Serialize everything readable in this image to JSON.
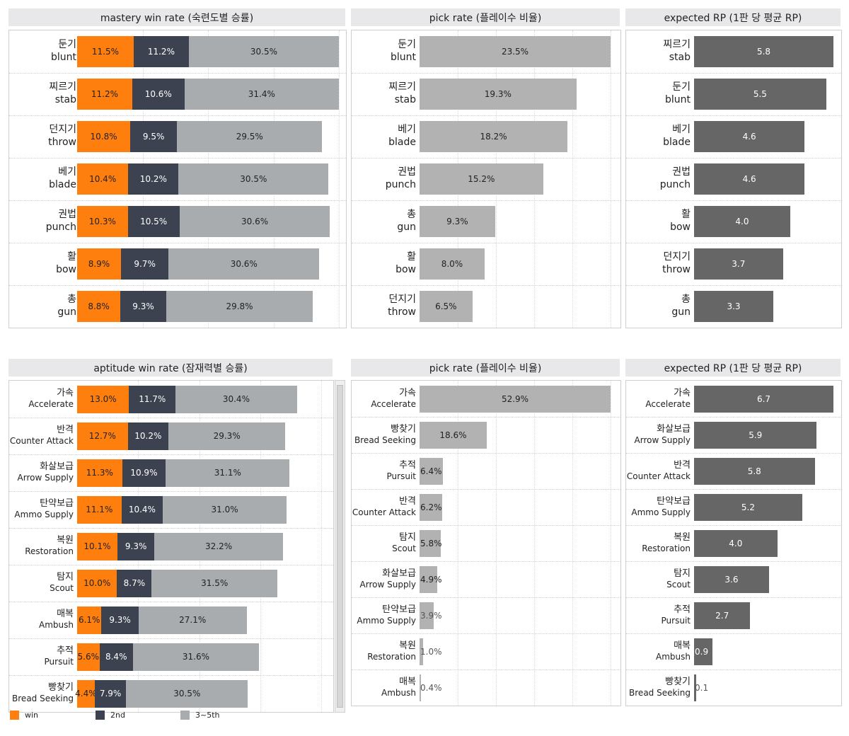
{
  "colors": {
    "win": "#ff7f0e",
    "second": "#3d4250",
    "third": "#a8acaf",
    "pick": "#b2b2b2",
    "rp": "#666666"
  },
  "legend": [
    {
      "label": "win",
      "color": "#ff7f0e"
    },
    {
      "label": "2nd",
      "color": "#3d4250"
    },
    {
      "label": "3~5th",
      "color": "#a8acaf"
    }
  ],
  "chart_data": [
    {
      "type": "bar",
      "stacked": true,
      "title": "mastery win rate (숙련도별 승률)",
      "categories": [
        {
          "ko": "둔기",
          "en": "blunt"
        },
        {
          "ko": "찌르기",
          "en": "stab"
        },
        {
          "ko": "던지기",
          "en": "throw"
        },
        {
          "ko": "베기",
          "en": "blade"
        },
        {
          "ko": "권법",
          "en": "punch"
        },
        {
          "ko": "활",
          "en": "bow"
        },
        {
          "ko": "총",
          "en": "gun"
        }
      ],
      "series": [
        {
          "name": "win",
          "values": [
            11.5,
            11.2,
            10.8,
            10.4,
            10.3,
            8.9,
            8.8
          ]
        },
        {
          "name": "2nd",
          "values": [
            11.2,
            10.6,
            9.5,
            10.2,
            10.5,
            9.7,
            9.3
          ]
        },
        {
          "name": "3~5th",
          "values": [
            30.5,
            31.4,
            29.5,
            30.5,
            30.6,
            30.6,
            29.8
          ]
        }
      ],
      "xlim": [
        0,
        53.2
      ],
      "grid": true
    },
    {
      "type": "bar",
      "title": "pick rate (플레이수 비율)",
      "categories": [
        {
          "ko": "둔기",
          "en": "blunt"
        },
        {
          "ko": "찌르기",
          "en": "stab"
        },
        {
          "ko": "베기",
          "en": "blade"
        },
        {
          "ko": "권법",
          "en": "punch"
        },
        {
          "ko": "총",
          "en": "gun"
        },
        {
          "ko": "활",
          "en": "bow"
        },
        {
          "ko": "던지기",
          "en": "throw"
        }
      ],
      "values": [
        23.5,
        19.3,
        18.2,
        15.2,
        9.3,
        8.0,
        6.5
      ],
      "labels": [
        "23.5%",
        "19.3%",
        "18.2%",
        "15.2%",
        "9.3%",
        "8.0%",
        "6.5%"
      ],
      "xlim": [
        0,
        23.5
      ],
      "grid": true
    },
    {
      "type": "bar",
      "title": "expected RP (1판 당 평균 RP)",
      "categories": [
        {
          "ko": "찌르기",
          "en": "stab"
        },
        {
          "ko": "둔기",
          "en": "blunt"
        },
        {
          "ko": "베기",
          "en": "blade"
        },
        {
          "ko": "권법",
          "en": "punch"
        },
        {
          "ko": "활",
          "en": "bow"
        },
        {
          "ko": "던지기",
          "en": "throw"
        },
        {
          "ko": "총",
          "en": "gun"
        }
      ],
      "values": [
        5.8,
        5.5,
        4.6,
        4.6,
        4.0,
        3.7,
        3.3
      ],
      "labels": [
        "5.8",
        "5.5",
        "4.6",
        "4.6",
        "4.0",
        "3.7",
        "3.3"
      ],
      "xlim": [
        0,
        5.8
      ],
      "grid": false
    },
    {
      "type": "bar",
      "stacked": true,
      "title": "aptitude win rate (잠재력별 승률)",
      "categories": [
        {
          "ko": "가속",
          "en": "Accelerate"
        },
        {
          "ko": "반격",
          "en": "Counter Attack"
        },
        {
          "ko": "화살보급",
          "en": "Arrow Supply"
        },
        {
          "ko": "탄약보급",
          "en": "Ammo Supply"
        },
        {
          "ko": "복원",
          "en": "Restoration"
        },
        {
          "ko": "탐지",
          "en": "Scout"
        },
        {
          "ko": "매복",
          "en": "Ambush"
        },
        {
          "ko": "추적",
          "en": "Pursuit"
        },
        {
          "ko": "빵찾기",
          "en": "Bread Seeking"
        }
      ],
      "series": [
        {
          "name": "win",
          "values": [
            13.0,
            12.7,
            11.3,
            11.1,
            10.1,
            10.0,
            6.1,
            5.6,
            4.4
          ]
        },
        {
          "name": "2nd",
          "values": [
            11.7,
            10.2,
            10.9,
            10.4,
            9.3,
            8.7,
            9.3,
            8.4,
            7.9
          ]
        },
        {
          "name": "3~5th",
          "values": [
            30.4,
            29.3,
            31.1,
            31.0,
            32.2,
            31.5,
            27.1,
            31.6,
            30.5
          ]
        }
      ],
      "xlim": [
        0,
        61.2
      ],
      "grid": true
    },
    {
      "type": "bar",
      "title": "pick rate (플레이수 비율)",
      "categories": [
        {
          "ko": "가속",
          "en": "Accelerate"
        },
        {
          "ko": "빵찾기",
          "en": "Bread Seeking"
        },
        {
          "ko": "추적",
          "en": "Pursuit"
        },
        {
          "ko": "반격",
          "en": "Counter Attack"
        },
        {
          "ko": "탐지",
          "en": "Scout"
        },
        {
          "ko": "화살보급",
          "en": "Arrow Supply"
        },
        {
          "ko": "탄약보급",
          "en": "Ammo Supply"
        },
        {
          "ko": "복원",
          "en": "Restoration"
        },
        {
          "ko": "매복",
          "en": "Ambush"
        }
      ],
      "values": [
        52.9,
        18.6,
        6.4,
        6.2,
        5.8,
        4.9,
        3.9,
        1.0,
        0.4
      ],
      "labels": [
        "52.9%",
        "18.6%",
        "6.4%",
        "6.2%",
        "5.8%",
        "4.9%",
        "3.9%",
        "1.0%",
        "0.4%"
      ],
      "xlim": [
        0,
        52.9
      ],
      "grid": true
    },
    {
      "type": "bar",
      "title": "expected RP (1판 당 평균 RP)",
      "categories": [
        {
          "ko": "가속",
          "en": "Accelerate"
        },
        {
          "ko": "화살보급",
          "en": "Arrow Supply"
        },
        {
          "ko": "반격",
          "en": "Counter Attack"
        },
        {
          "ko": "탄약보급",
          "en": "Ammo Supply"
        },
        {
          "ko": "복원",
          "en": "Restoration"
        },
        {
          "ko": "탐지",
          "en": "Scout"
        },
        {
          "ko": "추적",
          "en": "Pursuit"
        },
        {
          "ko": "매복",
          "en": "Ambush"
        },
        {
          "ko": "빵찾기",
          "en": "Bread Seeking"
        }
      ],
      "values": [
        6.7,
        5.9,
        5.8,
        5.2,
        4.0,
        3.6,
        2.7,
        0.9,
        0.1
      ],
      "labels": [
        "6.7",
        "5.9",
        "5.8",
        "5.2",
        "4.0",
        "3.6",
        "2.7",
        "0.9",
        "0.1"
      ],
      "xlim": [
        0,
        6.7
      ],
      "grid": false
    }
  ]
}
